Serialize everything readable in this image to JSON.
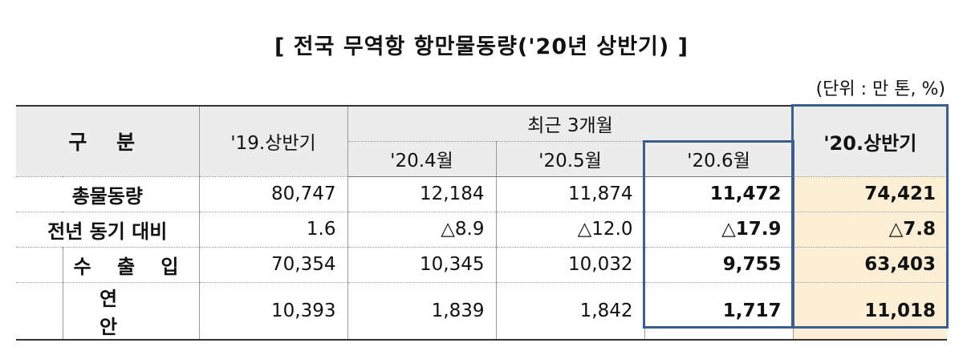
{
  "title": "[ 전국 무역항 항만물동량('20년 상반기) ]",
  "unit": "(단위 : 만 톤, %)",
  "headers": {
    "category": "구 분",
    "h19": "'19.상반기",
    "recent": "최근 3개월",
    "apr": "'20.4월",
    "may": "'20.5월",
    "jun": "'20.6월",
    "h20": "'20.상반기"
  },
  "rows": [
    {
      "label": "총물동량",
      "h19": "80,747",
      "apr": "12,184",
      "may": "11,874",
      "jun": "11,472",
      "h20": "74,421"
    },
    {
      "label": "전년 동기 대비",
      "h19": "1.6",
      "apr": "△8.9",
      "may": "△12.0",
      "jun": "△17.9",
      "h20": "△7.8"
    },
    {
      "label": "수 출 입",
      "h19": "70,354",
      "apr": "10,345",
      "may": "10,032",
      "jun": "9,755",
      "h20": "63,403"
    },
    {
      "label": "연 안",
      "h19": "10,393",
      "apr": "1,839",
      "may": "1,842",
      "jun": "1,717",
      "h20": "11,018"
    }
  ],
  "colors": {
    "highlight_fill": "#fdefd6",
    "highlight_border": "#3b5e8e",
    "header_fill": "#ececec"
  }
}
